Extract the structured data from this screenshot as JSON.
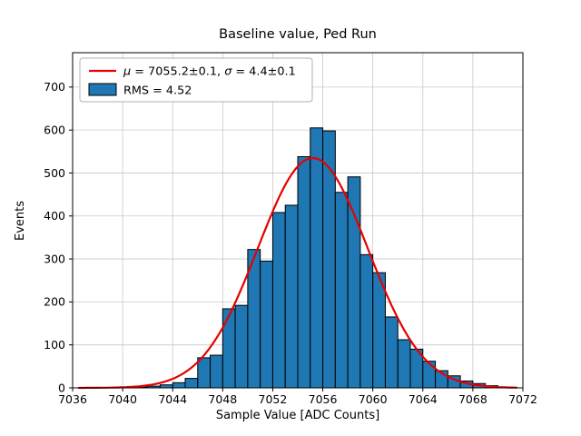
{
  "chart_data": {
    "type": "bar",
    "subtype": "histogram-with-gaussian-fit",
    "title": "Baseline value, Ped Run",
    "xlabel": "Sample Value [ADC Counts]",
    "ylabel": "Events",
    "xlim": [
      7036,
      7072
    ],
    "ylim": [
      0,
      780
    ],
    "x_ticks": [
      7036,
      7040,
      7044,
      7048,
      7052,
      7056,
      7060,
      7064,
      7068,
      7072
    ],
    "y_ticks": [
      0,
      100,
      200,
      300,
      400,
      500,
      600,
      700
    ],
    "grid": true,
    "legend_position": "upper left",
    "bin_width": 1,
    "bin_left_edges": [
      7040,
      7041,
      7042,
      7043,
      7044,
      7045,
      7046,
      7047,
      7048,
      7049,
      7050,
      7051,
      7052,
      7053,
      7054,
      7055,
      7056,
      7057,
      7058,
      7059,
      7060,
      7061,
      7062,
      7063,
      7064,
      7065,
      7066,
      7067,
      7068,
      7069,
      7070
    ],
    "counts": [
      1,
      2,
      4,
      7,
      12,
      22,
      70,
      76,
      184,
      192,
      322,
      295,
      408,
      425,
      538,
      605,
      598,
      455,
      491,
      310,
      268,
      165,
      112,
      90,
      62,
      40,
      28,
      16,
      10,
      5,
      2
    ],
    "fit": {
      "type": "gaussian",
      "mu": 7055.2,
      "mu_err": 0.1,
      "sigma": 4.4,
      "sigma_err": 0.1,
      "amplitude": 535,
      "x_range": [
        7036.5,
        7071.5
      ]
    },
    "legend": [
      {
        "type": "line",
        "label": "μ = 7055.2±0.1, σ = 4.4±0.1"
      },
      {
        "type": "patch",
        "label": "RMS = 4.52"
      }
    ],
    "colors": {
      "bar": "#1f77b4",
      "bar_edge": "#000000",
      "fit": "#e60000",
      "grid": "#c8c8c8",
      "axes": "#000000",
      "legend_border": "#b0b0b0",
      "background": "#ffffff"
    }
  }
}
